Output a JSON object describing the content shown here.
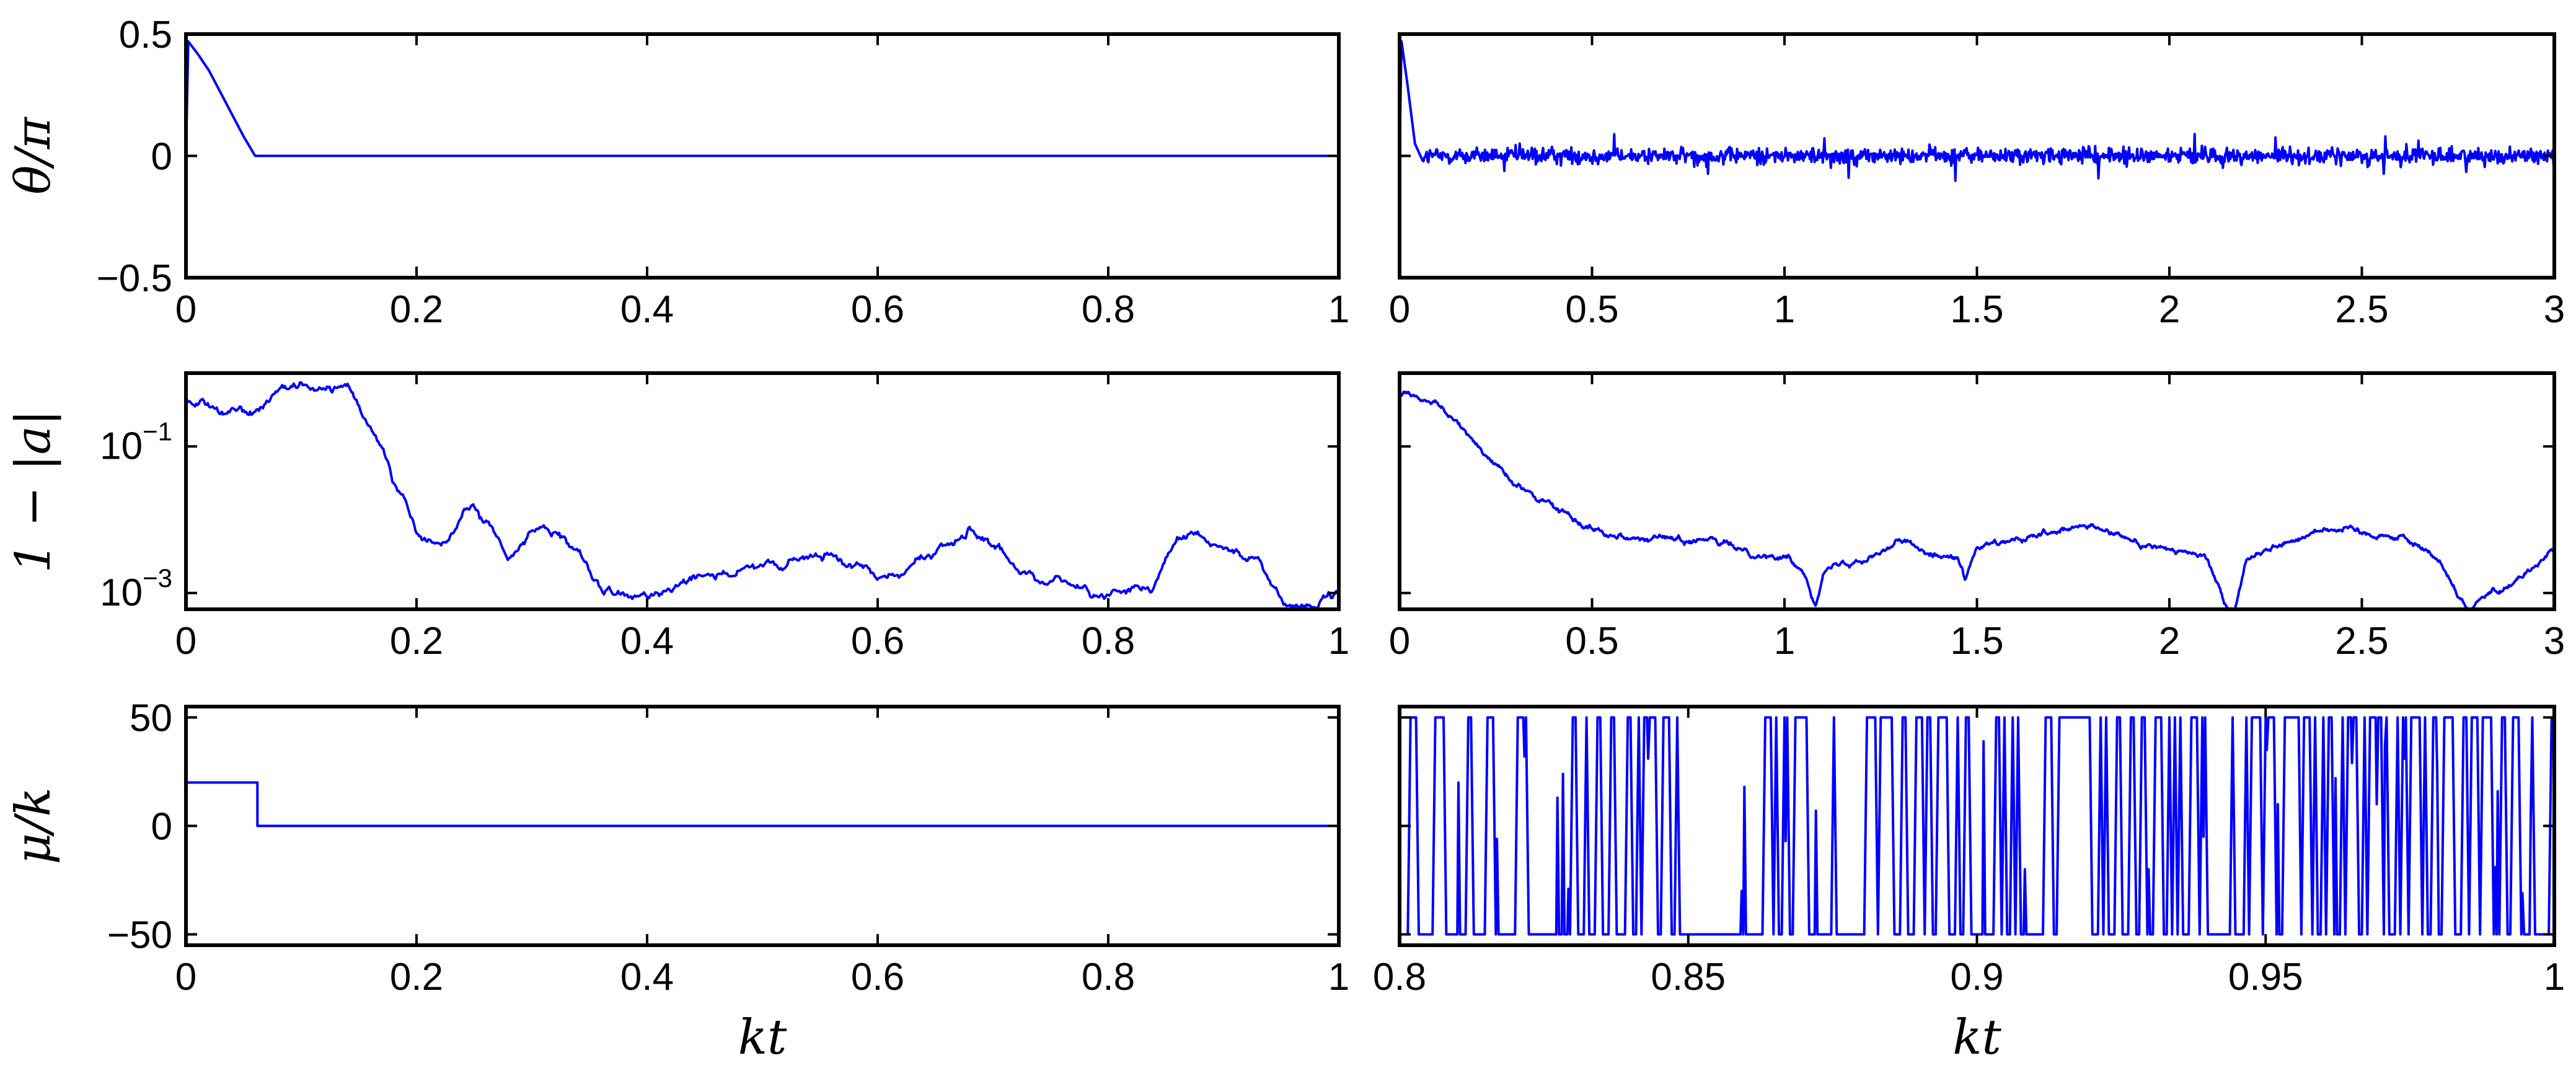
{
  "chart_data": [
    {
      "type": "line",
      "panel": "top-left",
      "ylabel": "θ/π",
      "xlabel": "",
      "xlim": [
        0,
        1
      ],
      "ylim": [
        -0.5,
        0.5
      ],
      "xticks": [
        "0",
        "0.2",
        "0.4",
        "0.6",
        "0.8",
        "1"
      ],
      "yticks": [
        "0.5",
        "0",
        "−0.5"
      ],
      "series": [
        {
          "x": [
            0,
            0.002,
            0.01,
            0.02,
            0.03,
            0.04,
            0.05,
            0.06,
            0.1,
            0.5,
            1
          ],
          "y": [
            0,
            0.47,
            0.42,
            0.35,
            0.26,
            0.17,
            0.08,
            0.0,
            0,
            0,
            0
          ]
        }
      ],
      "color": "#0000ff"
    },
    {
      "type": "line",
      "panel": "top-right",
      "ylabel": "",
      "xlabel": "",
      "xlim": [
        0,
        3
      ],
      "ylim": [
        -0.5,
        0.5
      ],
      "xticks": [
        "0",
        "0.5",
        "1",
        "1.5",
        "2",
        "2.5",
        "3"
      ],
      "series": [
        {
          "x": [
            0,
            0.005,
            0.02,
            0.04,
            0.06
          ],
          "y": [
            0,
            0.47,
            0.3,
            0.05,
            -0.02
          ],
          "note_noise": "stationary noise around 0 (amplitude ≈ 0.05, spikes to ≈ ±0.15)"
        }
      ],
      "color": "#0000ff"
    },
    {
      "type": "line",
      "panel": "middle-left",
      "ylabel": "1 − |a|",
      "xlabel": "",
      "yscale": "log",
      "xlim": [
        0,
        1
      ],
      "ylim": [
        0.0006,
        1
      ],
      "xticks": [
        "0",
        "0.2",
        "0.4",
        "0.6",
        "0.8",
        "1"
      ],
      "yticks": [
        "10−1",
        "10−3"
      ],
      "series": [
        {
          "x": [
            0,
            0.05,
            0.1,
            0.14,
            0.17,
            0.19,
            0.2,
            0.22,
            0.25,
            0.28,
            0.31,
            0.34,
            0.36,
            0.38,
            0.4,
            0.44,
            0.5,
            0.55,
            0.6,
            0.64,
            0.68,
            0.72,
            0.76,
            0.8,
            0.84,
            0.86,
            0.9,
            0.93,
            0.95,
            0.97,
            1
          ],
          "y": [
            0.5,
            0.3,
            0.6,
            0.6,
            0.1,
            0.02,
            0.006,
            0.004,
            0.015,
            0.003,
            0.01,
            0.003,
            0.001,
            0.0008,
            0.0008,
            0.002,
            0.002,
            0.003,
            0.002,
            0.003,
            0.007,
            0.002,
            0.0015,
            0.001,
            0.0012,
            0.005,
            0.004,
            0.003,
            0.0008,
            0.0007,
            0.0008
          ]
        }
      ],
      "color": "#0000ff"
    },
    {
      "type": "line",
      "panel": "middle-right",
      "ylabel": "",
      "xlabel": "",
      "yscale": "log",
      "xlim": [
        0,
        3
      ],
      "ylim": [
        0.0006,
        1
      ],
      "xticks": [
        "0",
        "0.5",
        "1",
        "1.5",
        "2",
        "2.5",
        "3"
      ],
      "series": [
        {
          "x": [
            0,
            0.1,
            0.2,
            0.3,
            0.4,
            0.5,
            0.6,
            0.8,
            1.0,
            1.05,
            1.08,
            1.1,
            1.3,
            1.45,
            1.47,
            1.5,
            1.8,
            1.9,
            2.1,
            2.15,
            2.17,
            2.2,
            2.4,
            2.6,
            2.7,
            2.76,
            2.78,
            2.8,
            2.9,
            3.0
          ],
          "y": [
            0.5,
            0.4,
            0.1,
            0.03,
            0.015,
            0.008,
            0.006,
            0.005,
            0.003,
            0.002,
            0.0008,
            0.002,
            0.005,
            0.003,
            0.0015,
            0.004,
            0.008,
            0.005,
            0.003,
            0.0007,
            0.0006,
            0.003,
            0.008,
            0.006,
            0.003,
            0.0008,
            0.0006,
            0.0008,
            0.0015,
            0.004
          ]
        }
      ],
      "color": "#0000ff"
    },
    {
      "type": "line",
      "panel": "bottom-left",
      "ylabel": "μ/k",
      "xlabel": "kt",
      "xlim": [
        0,
        1
      ],
      "ylim": [
        -55,
        55
      ],
      "xticks": [
        "0",
        "0.2",
        "0.4",
        "0.6",
        "0.8",
        "1"
      ],
      "yticks": [
        "50",
        "0",
        "−50"
      ],
      "series": [
        {
          "x": [
            0,
            0.062,
            0.062,
            1
          ],
          "y": [
            20,
            20,
            0,
            0
          ]
        }
      ],
      "color": "#0000ff"
    },
    {
      "type": "line",
      "panel": "bottom-right",
      "ylabel": "",
      "xlabel": "kt",
      "xlim": [
        0.8,
        1
      ],
      "ylim": [
        -55,
        55
      ],
      "xticks": [
        "0.8",
        "0.85",
        "0.9",
        "0.95",
        "1"
      ],
      "series": [
        {
          "x": [
            0.8,
            0.849,
            0.8495,
            0.863,
            0.8635,
            0.93,
            0.95,
            0.965,
            0.98,
            1.0
          ],
          "y": [
            50,
            -50,
            -50,
            -50,
            50,
            -50,
            50,
            50,
            -50,
            50
          ],
          "note_noise": "bang-bang switching between +50 and −50"
        }
      ],
      "color": "#0000ff"
    }
  ]
}
